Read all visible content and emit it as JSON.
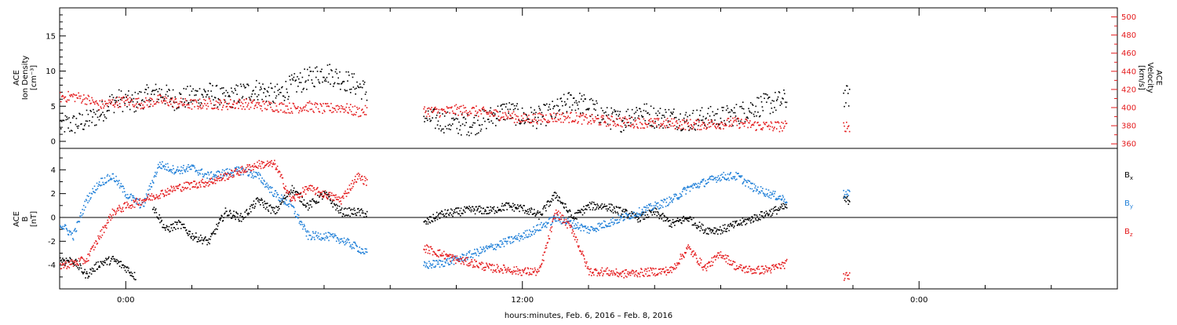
{
  "colors": {
    "black": "#000000",
    "red": "#e41a1c",
    "blue": "#1f7fd8",
    "frame": "#000000"
  },
  "chart_data": [
    {
      "type": "scatter",
      "panel": "top",
      "ylabel_left": [
        "ACE",
        "Ion Density",
        "[cm⁻³]"
      ],
      "ylabel_right": [
        "ACE",
        "Velocity",
        "[km/s]"
      ],
      "ylim_left": [
        -1,
        19
      ],
      "ylim_right": [
        355,
        510
      ],
      "yticks_left": [
        0,
        5,
        10,
        15
      ],
      "yticks_right": [
        360,
        380,
        400,
        420,
        440,
        460,
        480,
        500
      ],
      "series": [
        {
          "color": "black",
          "axis": "left",
          "segments": [
            {
              "x": [
                -2.0,
                -1.6,
                -1.2,
                -0.8,
                -0.5,
                -0.2,
                0.2,
                0.6,
                1.0,
                1.5,
                2.0,
                2.5,
                3.0,
                3.5,
                4.0,
                4.5,
                5.0,
                5.5,
                6.0,
                6.5,
                7.0,
                7.3
              ],
              "y": [
                2.5,
                2.5,
                3.0,
                4.0,
                5.5,
                6.0,
                5.5,
                6.5,
                7.0,
                6.0,
                6.5,
                7.0,
                6.0,
                7.0,
                7.5,
                6.5,
                8.0,
                9.0,
                10.0,
                9.0,
                8.0,
                7.0
              ]
            },
            {
              "x": [
                9.0,
                9.5,
                10.0,
                10.5,
                11.0,
                11.5,
                12.0,
                12.5,
                13.0,
                13.5,
                14.0,
                14.5,
                15.0,
                15.5,
                16.0,
                16.5,
                17.0,
                17.5,
                18.0,
                18.5,
                19.0,
                19.5,
                20.0
              ],
              "y": [
                3.5,
                3.0,
                2.5,
                2.5,
                3.5,
                4.5,
                3.5,
                3.5,
                4.5,
                6.0,
                5.0,
                3.5,
                3.0,
                4.5,
                3.5,
                3.5,
                3.0,
                3.5,
                3.5,
                4.0,
                5.0,
                5.5,
                6.0
              ]
            },
            {
              "x": [
                21.7,
                21.9
              ],
              "y": [
                6.5,
                6.5
              ]
            }
          ]
        },
        {
          "color": "red",
          "axis": "right",
          "segments": [
            {
              "x": [
                -2.0,
                -1.6,
                -1.2,
                -0.8,
                -0.4,
                0.0,
                0.5,
                1.0,
                1.5,
                2.0,
                2.5,
                3.0,
                3.5,
                4.0,
                4.5,
                5.0,
                5.5,
                6.0,
                6.5,
                7.0,
                7.3
              ],
              "y": [
                412,
                413,
                410,
                403,
                406,
                408,
                405,
                409,
                406,
                404,
                405,
                404,
                405,
                403,
                402,
                400,
                402,
                399,
                401,
                396,
                397
              ]
            },
            {
              "x": [
                9.0,
                9.5,
                10.0,
                10.5,
                11.0,
                11.5,
                12.0,
                12.5,
                13.0,
                13.5,
                14.0,
                14.5,
                15.0,
                15.5,
                16.0,
                16.5,
                17.0,
                17.5,
                18.0,
                18.5,
                19.0,
                19.5,
                20.0
              ],
              "y": [
                397,
                396,
                398,
                397,
                394,
                392,
                388,
                389,
                390,
                390,
                387,
                386,
                385,
                384,
                383,
                383,
                382,
                382,
                383,
                384,
                381,
                380,
                380
              ]
            },
            {
              "x": [
                21.7,
                21.9
              ],
              "y": [
                380,
                380
              ]
            }
          ]
        }
      ]
    },
    {
      "type": "scatter",
      "panel": "bottom",
      "ylabel_left": [
        "ACE",
        "B",
        "[nT]"
      ],
      "ylim": [
        -6,
        5.8
      ],
      "yticks": [
        -4,
        -2,
        0,
        2,
        4
      ],
      "zero_line": true,
      "legend": [
        "Bx",
        "By",
        "Bz"
      ],
      "series": [
        {
          "name": "Bx",
          "color": "black",
          "segments": [
            {
              "x": [
                -2.0,
                -1.6,
                -1.2,
                -0.8,
                -0.4,
                0.0,
                0.3
              ],
              "y": [
                -3.5,
                -3.6,
                -4.8,
                -3.8,
                -3.5,
                -4.2,
                -5.0
              ]
            },
            {
              "x": [
                0.8,
                1.2,
                1.6,
                2.0,
                2.5,
                3.0,
                3.5,
                4.0,
                4.5,
                5.0,
                5.5,
                6.0,
                6.5,
                7.0,
                7.3
              ],
              "y": [
                1.0,
                -1.0,
                -0.5,
                -1.5,
                -2.0,
                0.5,
                0.0,
                1.5,
                0.5,
                2.5,
                1.0,
                2.0,
                0.5,
                0.5,
                0.3
              ]
            },
            {
              "x": [
                9.0,
                9.5,
                10.0,
                10.5,
                11.0,
                11.5,
                12.0,
                12.5,
                13.0,
                13.5,
                14.0,
                14.5,
                15.0,
                15.5,
                16.0,
                16.5,
                17.0,
                17.5,
                18.0,
                18.5,
                19.0,
                19.5,
                20.0
              ],
              "y": [
                -0.5,
                0.3,
                0.5,
                0.7,
                0.6,
                1.0,
                0.8,
                0.2,
                2.0,
                0.0,
                1.0,
                1.0,
                0.5,
                0.0,
                0.5,
                -0.5,
                0.0,
                -1.0,
                -1.0,
                -0.5,
                0.0,
                0.5,
                1.0
              ]
            },
            {
              "x": [
                21.7,
                21.9
              ],
              "y": [
                1.5,
                1.5
              ]
            }
          ]
        },
        {
          "name": "By",
          "color": "blue",
          "segments": [
            {
              "x": [
                -2.0,
                -1.6,
                -1.2,
                -0.8,
                -0.4,
                0.0,
                0.5,
                1.0,
                1.5,
                2.0,
                2.5,
                3.0,
                3.5,
                4.0,
                4.5,
                5.0,
                5.5,
                6.0,
                6.5,
                7.0,
                7.3
              ],
              "y": [
                -0.5,
                -1.5,
                1.5,
                3.0,
                3.5,
                2.0,
                1.0,
                4.5,
                4.0,
                4.2,
                3.5,
                3.8,
                4.0,
                3.5,
                2.0,
                1.0,
                -1.5,
                -1.5,
                -1.8,
                -2.5,
                -3.0
              ]
            },
            {
              "x": [
                9.0,
                9.5,
                10.0,
                10.5,
                11.0,
                11.5,
                12.0,
                12.5,
                13.0,
                13.5,
                14.0,
                14.5,
                15.0,
                15.5,
                16.0,
                16.5,
                17.0,
                17.5,
                18.0,
                18.5,
                19.0,
                19.5,
                20.0
              ],
              "y": [
                -4.0,
                -3.8,
                -3.5,
                -3.0,
                -2.5,
                -2.0,
                -1.5,
                -0.8,
                0.0,
                -0.5,
                -1.0,
                -0.5,
                0.0,
                0.5,
                1.0,
                1.5,
                2.5,
                3.0,
                3.5,
                3.5,
                2.5,
                2.0,
                1.5
              ]
            },
            {
              "x": [
                21.7,
                21.9
              ],
              "y": [
                2.0,
                2.0
              ]
            }
          ]
        },
        {
          "name": "Bz",
          "color": "red",
          "segments": [
            {
              "x": [
                -2.0,
                -1.6,
                -1.2,
                -0.8,
                -0.4,
                0.0,
                0.5,
                1.0,
                1.5,
                2.0,
                2.5,
                3.0,
                3.5,
                4.0,
                4.5,
                5.0,
                5.5,
                6.0,
                6.5,
                7.0,
                7.3
              ],
              "y": [
                -4.0,
                -3.8,
                -3.5,
                -1.5,
                0.5,
                1.0,
                1.5,
                2.0,
                2.5,
                2.8,
                3.0,
                3.5,
                4.0,
                4.5,
                4.5,
                1.5,
                2.5,
                2.0,
                1.5,
                3.5,
                3.0
              ]
            },
            {
              "x": [
                9.0,
                9.5,
                10.0,
                10.5,
                11.0,
                11.5,
                12.0,
                12.5,
                13.0,
                13.5,
                14.0,
                14.5,
                15.0,
                15.5,
                16.0,
                16.5,
                17.0,
                17.5,
                18.0,
                18.5,
                19.0,
                19.5,
                20.0
              ],
              "y": [
                -2.5,
                -3.0,
                -3.5,
                -3.8,
                -4.2,
                -4.3,
                -4.5,
                -4.5,
                0.5,
                -1.0,
                -4.5,
                -4.5,
                -4.7,
                -4.6,
                -4.5,
                -4.4,
                -2.5,
                -4.2,
                -3.0,
                -4.2,
                -4.4,
                -4.3,
                -3.8
              ]
            },
            {
              "x": [
                21.7,
                21.9
              ],
              "y": [
                -4.9,
                -4.9
              ]
            }
          ]
        }
      ]
    }
  ],
  "x_axis": {
    "xlim": [
      -2.0,
      30.0
    ],
    "major_ticks": [
      0,
      12,
      24
    ],
    "tick_labels": [
      "0:00",
      "12:00",
      "0:00"
    ],
    "minor_tick_step_hours": 2,
    "label": "hours:minutes, Feb.  6, 2016 – Feb.  8, 2016"
  }
}
